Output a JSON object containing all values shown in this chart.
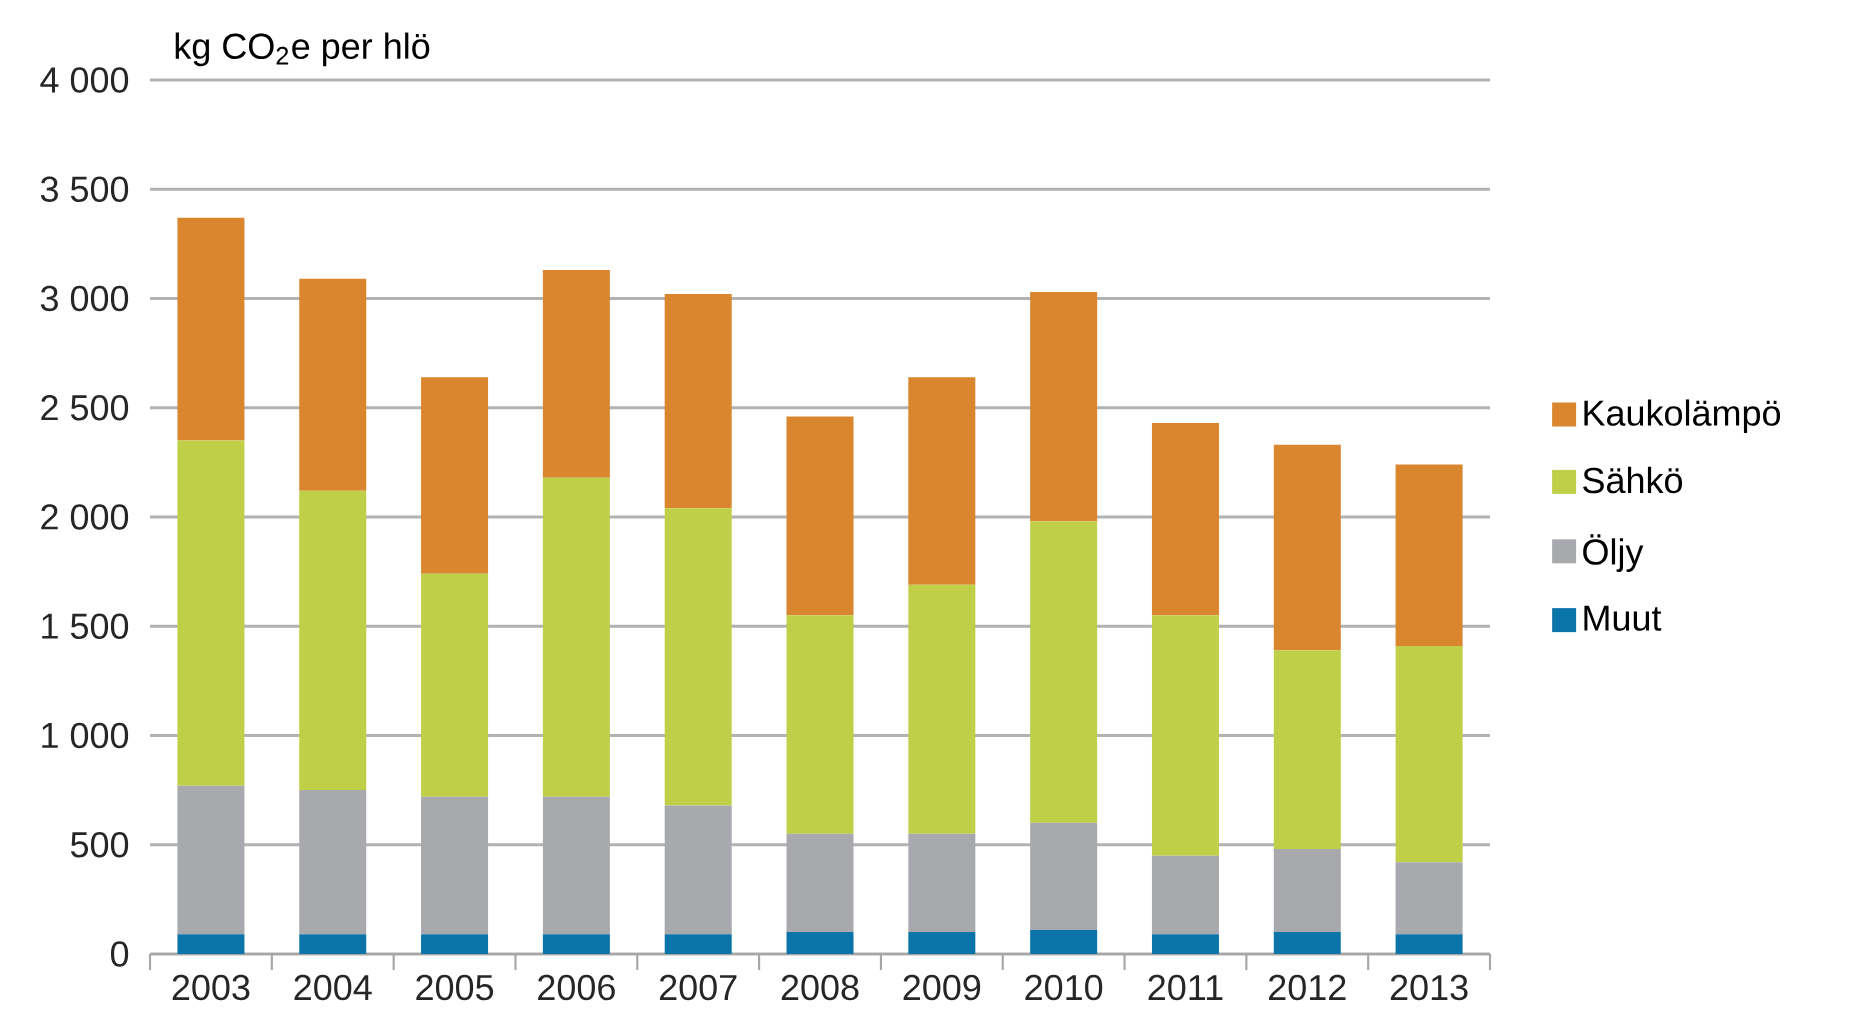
{
  "chart_data": {
    "type": "bar",
    "stacked": true,
    "ylabel": "kg CO$_{2}$e per hlö",
    "categories": [
      "2003",
      "2004",
      "2005",
      "2006",
      "2007",
      "2008",
      "2009",
      "2010",
      "2011",
      "2012",
      "2013"
    ],
    "series": [
      {
        "name": "Muut",
        "color": "#0b74a8",
        "values": [
          90,
          90,
          90,
          90,
          90,
          100,
          100,
          110,
          90,
          100,
          90
        ]
      },
      {
        "name": "Öljy",
        "color": "#a8a9ad",
        "values": [
          680,
          660,
          630,
          630,
          590,
          450,
          450,
          490,
          360,
          380,
          330
        ]
      },
      {
        "name": "Sähkö",
        "color": "#bfcf48",
        "values": [
          1580,
          1370,
          1020,
          1460,
          1360,
          1000,
          1140,
          1380,
          1100,
          910,
          990
        ]
      },
      {
        "name": "Kaukolämpö",
        "color": "#d9862f",
        "values": [
          1020,
          970,
          900,
          950,
          980,
          910,
          950,
          1050,
          880,
          940,
          830
        ]
      }
    ],
    "ylim": [
      0,
      4000
    ],
    "yticks": [
      0,
      500,
      {
        "value": 1000,
        "label": "1 000"
      },
      {
        "value": 1500,
        "label": "1 500"
      },
      {
        "value": 2000,
        "label": "2 000"
      },
      {
        "value": 2500,
        "label": "2 500"
      },
      {
        "value": 3000,
        "label": "3 000"
      },
      {
        "value": 3500,
        "label": "3 500"
      },
      {
        "value": 4000,
        "label": "4 000"
      }
    ],
    "grid": "y",
    "legend": "right"
  }
}
